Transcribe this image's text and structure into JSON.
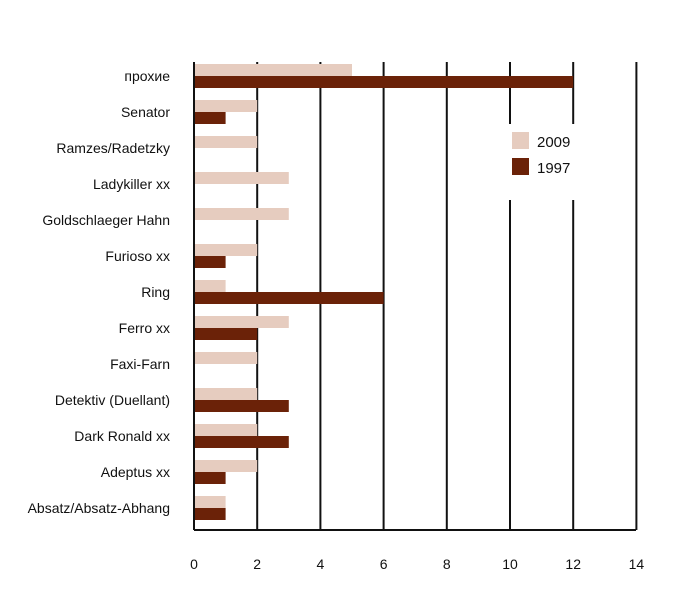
{
  "chart_data": {
    "type": "bar",
    "orientation": "horizontal",
    "categories": [
      "прохие",
      "Senator",
      "Ramzes/Radetzky",
      "Ladykiller xx",
      "Goldschlaeger Hahn",
      "Furioso xx",
      "Ring",
      "Ferro xx",
      "Faxi-Farn",
      "Detektiv (Duellant)",
      "Dark Ronald xx",
      "Adeptus xx",
      "Absatz/Absatz-Abhang"
    ],
    "series": [
      {
        "name": "2009",
        "color": "#e6ccbf",
        "values": [
          5,
          2,
          2,
          3,
          3,
          2,
          1,
          3,
          2,
          2,
          2,
          2,
          1
        ]
      },
      {
        "name": "1997",
        "color": "#6b2208",
        "values": [
          12,
          1,
          0,
          0,
          0,
          1,
          6,
          2,
          0,
          3,
          3,
          1,
          1
        ]
      }
    ],
    "xlim": [
      0,
      14
    ],
    "xticks": [
      "0",
      "2",
      "4",
      "6",
      "8",
      "10",
      "12",
      "14"
    ],
    "grid": true,
    "legend": "top-right"
  }
}
